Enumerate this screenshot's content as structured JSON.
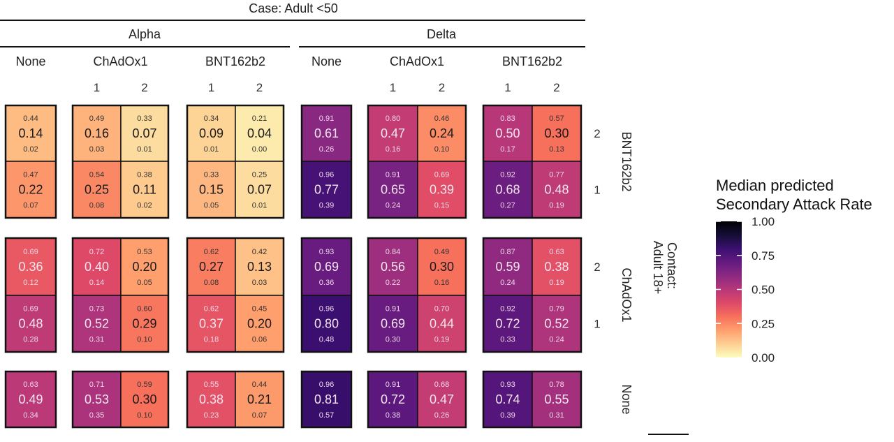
{
  "chart_data": {
    "type": "heatmap",
    "title": "Case: Adult <50",
    "variants": [
      "Alpha",
      "Delta"
    ],
    "case_vaccines": [
      "None",
      "ChAdOx1",
      "BNT162b2",
      "None",
      "ChAdOx1",
      "BNT162b2"
    ],
    "case_doses": [
      "",
      "1",
      "2",
      "1",
      "2",
      "",
      "1",
      "2",
      "1",
      "2"
    ],
    "row_facet_title": "Contact:\nAdult 18+",
    "row_facet_title_lines": [
      "Contact:",
      "Adult 18+"
    ],
    "contact_vaccines": [
      "BNT162b2",
      "ChAdOx1",
      "None"
    ],
    "contact_doses": [
      "2",
      "1",
      "2",
      "1",
      ""
    ],
    "cell_format": "[upper, median, lower]",
    "cells": [
      [
        [
          "0.44",
          "0.14",
          "0.02"
        ],
        [
          "0.49",
          "0.16",
          "0.03"
        ],
        [
          "0.33",
          "0.07",
          "0.01"
        ],
        [
          "0.34",
          "0.09",
          "0.01"
        ],
        [
          "0.21",
          "0.04",
          "0.00"
        ],
        [
          "0.91",
          "0.61",
          "0.26"
        ],
        [
          "0.80",
          "0.47",
          "0.16"
        ],
        [
          "0.46",
          "0.24",
          "0.10"
        ],
        [
          "0.83",
          "0.50",
          "0.17"
        ],
        [
          "0.57",
          "0.30",
          "0.13"
        ]
      ],
      [
        [
          "0.47",
          "0.22",
          "0.07"
        ],
        [
          "0.54",
          "0.25",
          "0.08"
        ],
        [
          "0.38",
          "0.11",
          "0.02"
        ],
        [
          "0.33",
          "0.15",
          "0.05"
        ],
        [
          "0.25",
          "0.07",
          "0.01"
        ],
        [
          "0.96",
          "0.77",
          "0.39"
        ],
        [
          "0.91",
          "0.65",
          "0.24"
        ],
        [
          "0.69",
          "0.39",
          "0.15"
        ],
        [
          "0.92",
          "0.68",
          "0.27"
        ],
        [
          "0.77",
          "0.48",
          "0.19"
        ]
      ],
      [
        [
          "0.69",
          "0.36",
          "0.12"
        ],
        [
          "0.72",
          "0.40",
          "0.14"
        ],
        [
          "0.53",
          "0.20",
          "0.05"
        ],
        [
          "0.62",
          "0.27",
          "0.08"
        ],
        [
          "0.42",
          "0.13",
          "0.03"
        ],
        [
          "0.93",
          "0.69",
          "0.36"
        ],
        [
          "0.84",
          "0.56",
          "0.22"
        ],
        [
          "0.49",
          "0.30",
          "0.16"
        ],
        [
          "0.87",
          "0.59",
          "0.24"
        ],
        [
          "0.63",
          "0.38",
          "0.19"
        ]
      ],
      [
        [
          "0.69",
          "0.48",
          "0.28"
        ],
        [
          "0.73",
          "0.52",
          "0.31"
        ],
        [
          "0.60",
          "0.29",
          "0.10"
        ],
        [
          "0.62",
          "0.37",
          "0.18"
        ],
        [
          "0.45",
          "0.20",
          "0.06"
        ],
        [
          "0.96",
          "0.80",
          "0.48"
        ],
        [
          "0.91",
          "0.69",
          "0.30"
        ],
        [
          "0.70",
          "0.44",
          "0.19"
        ],
        [
          "0.92",
          "0.72",
          "0.33"
        ],
        [
          "0.79",
          "0.52",
          "0.24"
        ]
      ],
      [
        [
          "0.63",
          "0.49",
          "0.34"
        ],
        [
          "0.71",
          "0.53",
          "0.35"
        ],
        [
          "0.59",
          "0.30",
          "0.10"
        ],
        [
          "0.55",
          "0.38",
          "0.23"
        ],
        [
          "0.44",
          "0.21",
          "0.07"
        ],
        [
          "0.96",
          "0.81",
          "0.57"
        ],
        [
          "0.91",
          "0.72",
          "0.38"
        ],
        [
          "0.68",
          "0.47",
          "0.26"
        ],
        [
          "0.93",
          "0.74",
          "0.39"
        ],
        [
          "0.78",
          "0.55",
          "0.31"
        ]
      ]
    ],
    "legend": {
      "title_lines": [
        "Median predicted",
        "Secondary Attack Rate"
      ],
      "ticks": [
        "1.00",
        "0.75",
        "0.50",
        "0.25",
        "0.00"
      ],
      "range": [
        0,
        1
      ],
      "colormap": "magma (reversed)",
      "placement": "right"
    }
  }
}
